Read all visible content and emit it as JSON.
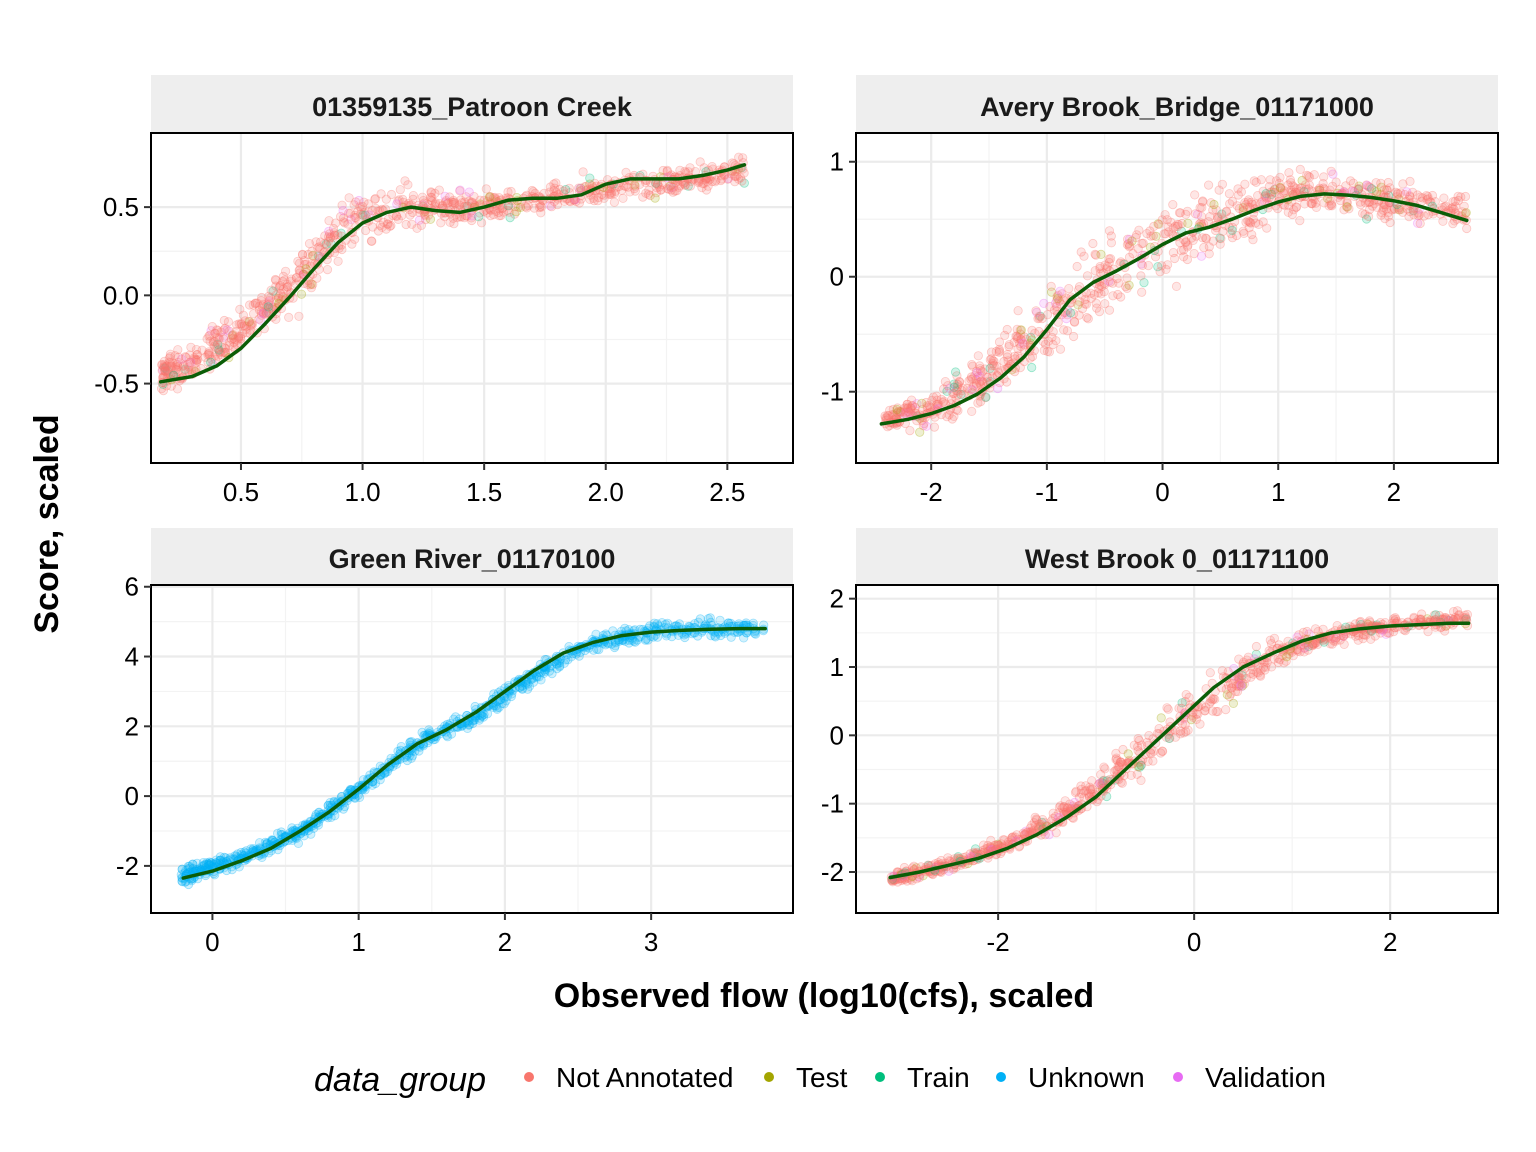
{
  "chart_data": [
    {
      "type": "scatter",
      "title": "01359135_Patroon Creek",
      "xlim": [
        0.13,
        2.77
      ],
      "ylim": [
        -0.95,
        0.92
      ],
      "xticks": [
        0.5,
        1.0,
        1.5,
        2.0,
        2.5
      ],
      "xtick_labels": [
        "0.5",
        "1.0",
        "1.5",
        "2.0",
        "2.5"
      ],
      "yticks": [
        -0.5,
        0.0,
        0.5
      ],
      "ytick_labels": [
        "-0.5",
        "0.0",
        "0.5"
      ],
      "dominant_group": "Not Annotated",
      "groups_present": [
        "Not Annotated",
        "Test",
        "Train",
        "Validation"
      ],
      "scatter_band": {
        "x": [
          0.17,
          0.3,
          0.5,
          0.7,
          0.85,
          1.0,
          1.2,
          1.5,
          2.0,
          2.57
        ],
        "y_center": [
          -0.45,
          -0.38,
          -0.2,
          0.05,
          0.28,
          0.45,
          0.5,
          0.5,
          0.6,
          0.7
        ],
        "spread": [
          0.12,
          0.14,
          0.15,
          0.2,
          0.2,
          0.18,
          0.15,
          0.12,
          0.1,
          0.1
        ]
      },
      "smooth_line": {
        "x": [
          0.17,
          0.3,
          0.4,
          0.5,
          0.6,
          0.7,
          0.8,
          0.9,
          1.0,
          1.1,
          1.2,
          1.3,
          1.4,
          1.5,
          1.6,
          1.7,
          1.8,
          1.9,
          2.0,
          2.1,
          2.2,
          2.3,
          2.4,
          2.5,
          2.57
        ],
        "y": [
          -0.49,
          -0.46,
          -0.4,
          -0.3,
          -0.16,
          -0.01,
          0.15,
          0.3,
          0.41,
          0.47,
          0.5,
          0.48,
          0.47,
          0.5,
          0.54,
          0.55,
          0.55,
          0.57,
          0.63,
          0.66,
          0.66,
          0.66,
          0.68,
          0.71,
          0.74
        ]
      }
    },
    {
      "type": "scatter",
      "title": "Avery Brook_Bridge_01171000",
      "xlim": [
        -2.65,
        2.9
      ],
      "ylim": [
        -1.62,
        1.25
      ],
      "xticks": [
        -2,
        -1,
        0,
        1,
        2
      ],
      "xtick_labels": [
        "-2",
        "-1",
        "0",
        "1",
        "2"
      ],
      "yticks": [
        -1,
        0,
        1
      ],
      "ytick_labels": [
        "-1",
        "0",
        "1"
      ],
      "dominant_group": "Not Annotated",
      "groups_present": [
        "Not Annotated",
        "Test",
        "Train",
        "Validation"
      ],
      "scatter_band": {
        "x": [
          -2.4,
          -2.0,
          -1.5,
          -1.0,
          -0.5,
          0.0,
          0.5,
          1.0,
          1.5,
          2.0,
          2.63
        ],
        "y_center": [
          -1.25,
          -1.15,
          -0.85,
          -0.4,
          0.0,
          0.3,
          0.5,
          0.7,
          0.75,
          0.65,
          0.55
        ],
        "spread": [
          0.12,
          0.18,
          0.3,
          0.4,
          0.45,
          0.4,
          0.35,
          0.25,
          0.2,
          0.2,
          0.2
        ]
      },
      "smooth_line": {
        "x": [
          -2.43,
          -2.2,
          -2.0,
          -1.8,
          -1.6,
          -1.4,
          -1.2,
          -1.0,
          -0.8,
          -0.6,
          -0.4,
          -0.2,
          0.0,
          0.2,
          0.4,
          0.6,
          0.8,
          1.0,
          1.2,
          1.4,
          1.6,
          1.8,
          2.0,
          2.2,
          2.4,
          2.63
        ],
        "y": [
          -1.28,
          -1.24,
          -1.19,
          -1.12,
          -1.02,
          -0.88,
          -0.7,
          -0.46,
          -0.2,
          -0.05,
          0.05,
          0.16,
          0.28,
          0.38,
          0.43,
          0.5,
          0.58,
          0.65,
          0.7,
          0.72,
          0.71,
          0.69,
          0.66,
          0.62,
          0.56,
          0.49
        ]
      }
    },
    {
      "type": "scatter",
      "title": "Green River_01170100",
      "xlim": [
        -0.42,
        3.97
      ],
      "ylim": [
        -3.35,
        6.05
      ],
      "xticks": [
        0,
        1,
        2,
        3
      ],
      "xtick_labels": [
        "0",
        "1",
        "2",
        "3"
      ],
      "yticks": [
        -2,
        0,
        2,
        4,
        6
      ],
      "ytick_labels": [
        "-2",
        "0",
        "2",
        "4",
        "6"
      ],
      "dominant_group": "Unknown",
      "groups_present": [
        "Unknown"
      ],
      "scatter_band": {
        "x": [
          -0.22,
          0.2,
          0.6,
          1.0,
          1.4,
          1.8,
          2.2,
          2.6,
          3.0,
          3.4,
          3.77
        ],
        "y_center": [
          -2.3,
          -1.8,
          -1.0,
          0.2,
          1.5,
          2.3,
          3.5,
          4.4,
          4.7,
          4.8,
          4.8
        ],
        "spread": [
          0.35,
          0.25,
          0.3,
          0.3,
          0.3,
          0.3,
          0.3,
          0.3,
          0.3,
          0.3,
          0.4
        ]
      },
      "smooth_line": {
        "x": [
          -0.2,
          0.0,
          0.2,
          0.4,
          0.6,
          0.8,
          1.0,
          1.2,
          1.4,
          1.6,
          1.8,
          2.0,
          2.2,
          2.4,
          2.6,
          2.8,
          3.0,
          3.2,
          3.4,
          3.6,
          3.78
        ],
        "y": [
          -2.35,
          -2.15,
          -1.85,
          -1.5,
          -1.0,
          -0.45,
          0.2,
          0.9,
          1.5,
          1.9,
          2.4,
          3.0,
          3.6,
          4.1,
          4.4,
          4.6,
          4.7,
          4.75,
          4.78,
          4.8,
          4.8
        ]
      }
    },
    {
      "type": "scatter",
      "title": "West Brook 0_01171100",
      "xlim": [
        -3.45,
        3.1
      ],
      "ylim": [
        -2.6,
        2.2
      ],
      "xticks": [
        -2,
        0,
        2
      ],
      "xtick_labels": [
        "-2",
        "0",
        "2"
      ],
      "yticks": [
        -2,
        -1,
        0,
        1,
        2
      ],
      "ytick_labels": [
        "-2",
        "-1",
        "0",
        "1",
        "2"
      ],
      "dominant_group": "Not Annotated",
      "groups_present": [
        "Not Annotated",
        "Test",
        "Train",
        "Validation"
      ],
      "scatter_band": {
        "x": [
          -3.1,
          -2.5,
          -2.0,
          -1.5,
          -1.0,
          -0.5,
          0.0,
          0.5,
          1.0,
          1.5,
          2.0,
          2.8
        ],
        "y_center": [
          -2.1,
          -1.9,
          -1.65,
          -1.3,
          -0.8,
          -0.2,
          0.4,
          0.9,
          1.3,
          1.5,
          1.6,
          1.7
        ],
        "spread": [
          0.12,
          0.12,
          0.15,
          0.2,
          0.3,
          0.45,
          0.4,
          0.35,
          0.25,
          0.2,
          0.15,
          0.15
        ]
      },
      "smooth_line": {
        "x": [
          -3.1,
          -2.8,
          -2.5,
          -2.2,
          -1.9,
          -1.6,
          -1.3,
          -1.0,
          -0.7,
          -0.4,
          -0.1,
          0.2,
          0.5,
          0.8,
          1.1,
          1.4,
          1.7,
          2.0,
          2.3,
          2.6,
          2.8
        ],
        "y": [
          -2.08,
          -2.0,
          -1.9,
          -1.8,
          -1.65,
          -1.45,
          -1.2,
          -0.9,
          -0.5,
          -0.1,
          0.3,
          0.7,
          1.0,
          1.2,
          1.38,
          1.5,
          1.56,
          1.6,
          1.62,
          1.64,
          1.64
        ]
      }
    }
  ],
  "axes": {
    "xlabel": "Observed flow (log10(cfs), scaled",
    "ylabel": "Score, scaled"
  },
  "legend": {
    "title": "data_group",
    "entries": [
      {
        "label": "Not Annotated",
        "color": "#F8766D"
      },
      {
        "label": "Test",
        "color": "#A3A500"
      },
      {
        "label": "Train",
        "color": "#00BF7D"
      },
      {
        "label": "Unknown",
        "color": "#00B0F6"
      },
      {
        "label": "Validation",
        "color": "#E76BF3"
      }
    ]
  },
  "colors": {
    "smooth_line": "#0B5D07",
    "strip_fill": "#EEEEEE",
    "grid": "#EBEBEB",
    "panel_border": "#000000"
  }
}
